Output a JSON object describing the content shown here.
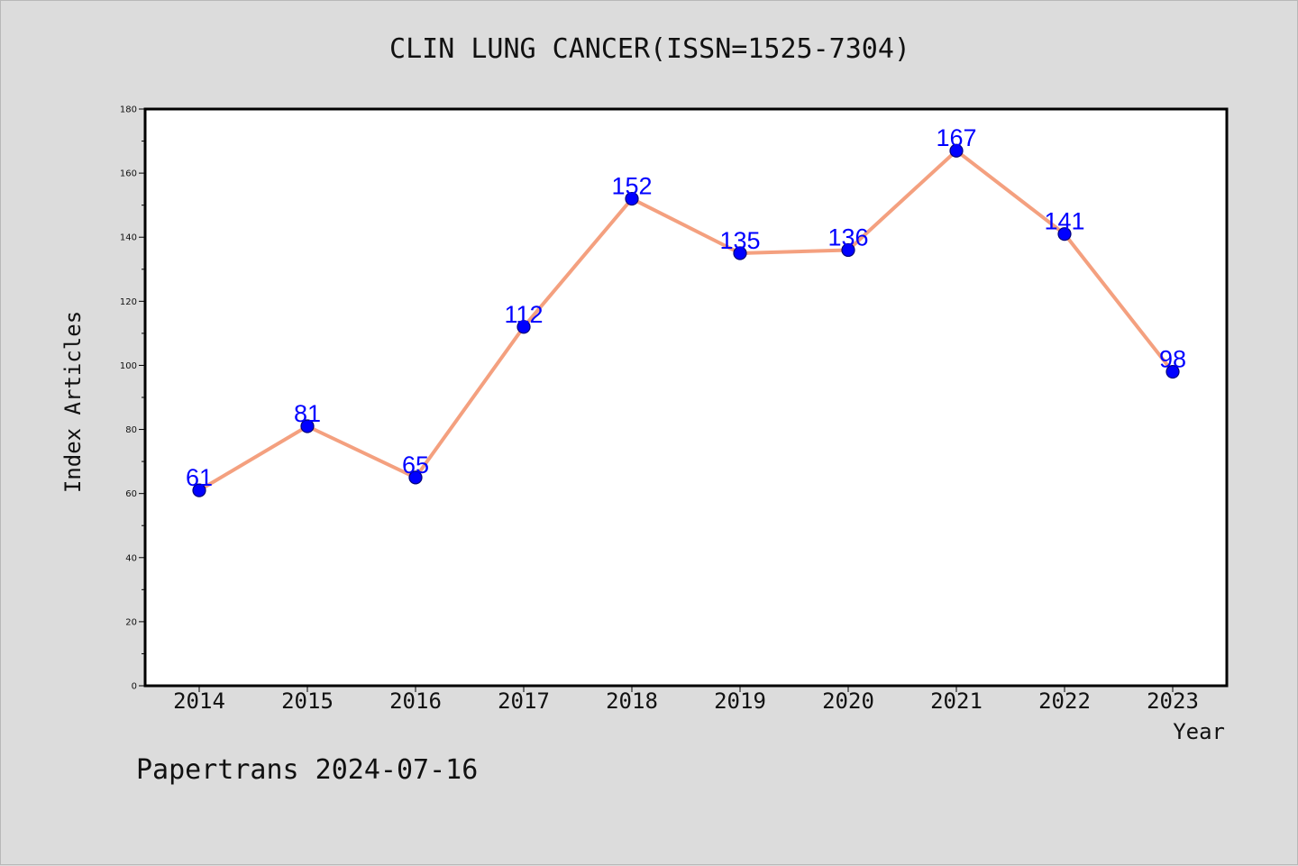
{
  "title": "CLIN LUNG CANCER(ISSN=1525-7304)",
  "footer": "Papertrans 2024-07-16",
  "colors": {
    "background": "#dcdcdc",
    "plot_background": "#ffffff",
    "line": "#f4a07f",
    "marker": "#0000ff",
    "data_label": "#0000ff"
  },
  "chart_data": {
    "type": "line",
    "title": "CLIN LUNG CANCER(ISSN=1525-7304)",
    "xlabel": "Year",
    "ylabel": "Index Articles",
    "categories": [
      "2014",
      "2015",
      "2016",
      "2017",
      "2018",
      "2019",
      "2020",
      "2021",
      "2022",
      "2023"
    ],
    "series": [
      {
        "values": [
          61,
          81,
          65,
          112,
          152,
          135,
          136,
          167,
          141,
          98
        ]
      }
    ],
    "ylim": [
      0,
      180
    ],
    "yticks": [
      0,
      20,
      40,
      60,
      80,
      100,
      120,
      140,
      160,
      180
    ],
    "grid": false,
    "data_labels": true
  }
}
